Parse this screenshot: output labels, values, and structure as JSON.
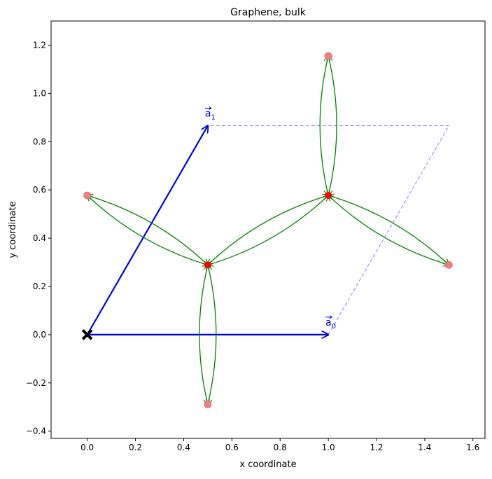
{
  "chart_data": {
    "type": "scatter",
    "title": "Graphene, bulk",
    "xlabel": "x coordinate",
    "ylabel": "y coordinate",
    "xlim": [
      -0.15,
      1.65
    ],
    "ylim": [
      -0.43,
      1.3
    ],
    "xticks": [
      0.0,
      0.2,
      0.4,
      0.6,
      0.8,
      1.0,
      1.2,
      1.4,
      1.6
    ],
    "xtick_labels": [
      "0.0",
      "0.2",
      "0.4",
      "0.6",
      "0.8",
      "1.0",
      "1.2",
      "1.4",
      "1.6"
    ],
    "yticks": [
      -0.4,
      -0.2,
      0.0,
      0.2,
      0.4,
      0.6,
      0.8,
      1.0,
      1.2
    ],
    "ytick_labels": [
      "−0.4",
      "−0.2",
      "0.0",
      "0.2",
      "0.4",
      "0.6",
      "0.8",
      "1.0",
      "1.2"
    ],
    "grid": false,
    "origin": {
      "x": 0.0,
      "y": 0.0,
      "marker": "X",
      "color": "#000000"
    },
    "lattice_vectors": [
      {
        "label": "a0",
        "x": 1.0,
        "y": 0.0,
        "color": "#0000e6"
      },
      {
        "label": "a1",
        "x": 0.5,
        "y": 0.866,
        "color": "#0000e6"
      }
    ],
    "unit_cell": {
      "color": "#8080ff",
      "corners": [
        [
          1.0,
          0.0
        ],
        [
          1.5,
          0.866
        ],
        [
          0.5,
          0.866
        ]
      ]
    },
    "sites": [
      {
        "x": 0.5,
        "y": 0.289,
        "color": "#ff0000"
      },
      {
        "x": 1.0,
        "y": 0.577,
        "color": "#ff0000"
      }
    ],
    "neighbor_sites": [
      {
        "x": 0.0,
        "y": 0.577,
        "color": "#f08080"
      },
      {
        "x": 0.5,
        "y": -0.289,
        "color": "#f08080"
      },
      {
        "x": 1.0,
        "y": 1.155,
        "color": "#f08080"
      },
      {
        "x": 1.5,
        "y": 0.289,
        "color": "#f08080"
      }
    ],
    "hoppings": {
      "color": "#008000",
      "pairs": [
        {
          "from": [
            0.5,
            0.289
          ],
          "to": [
            0.0,
            0.577
          ]
        },
        {
          "from": [
            0.5,
            0.289
          ],
          "to": [
            1.0,
            0.577
          ]
        },
        {
          "from": [
            0.5,
            0.289
          ],
          "to": [
            0.5,
            -0.289
          ]
        },
        {
          "from": [
            1.0,
            0.577
          ],
          "to": [
            1.0,
            1.155
          ]
        },
        {
          "from": [
            1.0,
            0.577
          ],
          "to": [
            1.5,
            0.289
          ]
        }
      ]
    }
  }
}
